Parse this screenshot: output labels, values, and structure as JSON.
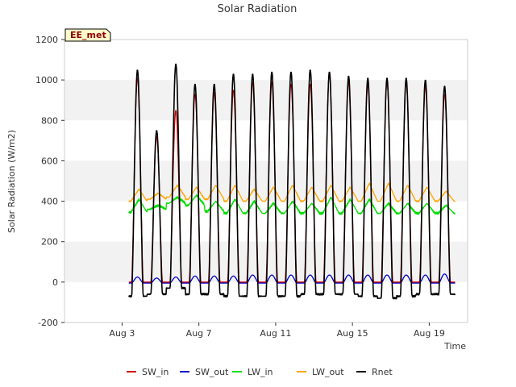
{
  "chart_data": {
    "type": "line",
    "title": "Solar Radiation",
    "xlabel": "Time",
    "ylabel": "Solar Radiation (W/m2)",
    "site_label": "EE_met",
    "xlim": [
      0,
      21
    ],
    "ylim": [
      -200,
      1200
    ],
    "yticks": [
      -200,
      0,
      200,
      400,
      600,
      800,
      1000,
      1200
    ],
    "xticks": [
      {
        "day": 3,
        "label": "Aug 3"
      },
      {
        "day": 7,
        "label": "Aug 7"
      },
      {
        "day": 11,
        "label": "Aug 11"
      },
      {
        "day": 15,
        "label": "Aug 15"
      },
      {
        "day": 19,
        "label": "Aug 19"
      }
    ],
    "grid": false,
    "shaded_bands": true,
    "legend": "bottom",
    "daily_peaks": {
      "days": [
        3.8,
        4.8,
        5.8,
        6.8,
        7.8,
        8.8,
        9.8,
        10.8,
        11.8,
        12.8,
        13.8,
        14.8,
        15.8,
        16.8,
        17.8,
        18.8,
        19.8
      ],
      "SW_in": [
        1010,
        720,
        850,
        930,
        940,
        950,
        990,
        990,
        980,
        980,
        1040,
        990,
        980,
        990,
        990,
        970,
        930
      ],
      "SW_out": [
        30,
        25,
        30,
        35,
        35,
        35,
        40,
        40,
        40,
        40,
        40,
        40,
        40,
        40,
        40,
        40,
        45
      ],
      "LW_in_peak": [
        410,
        380,
        420,
        430,
        400,
        410,
        400,
        390,
        400,
        390,
        420,
        410,
        410,
        390,
        390,
        390,
        380
      ],
      "LW_in_base": [
        345,
        360,
        390,
        380,
        350,
        340,
        340,
        340,
        340,
        340,
        340,
        340,
        340,
        340,
        340,
        340,
        340
      ],
      "LW_out_peak": [
        460,
        440,
        480,
        470,
        480,
        480,
        460,
        470,
        480,
        470,
        480,
        470,
        490,
        490,
        480,
        470,
        450
      ],
      "LW_out_base": [
        400,
        410,
        420,
        410,
        410,
        400,
        400,
        400,
        400,
        400,
        400,
        400,
        400,
        400,
        400,
        400,
        400
      ],
      "Rnet_peak": [
        1050,
        750,
        1080,
        980,
        980,
        1030,
        1030,
        1040,
        1040,
        1050,
        1040,
        1020,
        1010,
        1010,
        1010,
        1000,
        970
      ],
      "Rnet_night": [
        -70,
        -60,
        -30,
        -60,
        -60,
        -70,
        -70,
        -70,
        -70,
        -60,
        -60,
        -60,
        -70,
        -80,
        -70,
        -60,
        -60
      ]
    },
    "series": [
      {
        "name": "SW_in",
        "color": "#cc0000"
      },
      {
        "name": "SW_out",
        "color": "#0000cc"
      },
      {
        "name": "LW_in",
        "color": "#00dd00"
      },
      {
        "name": "LW_out",
        "color": "#ffa500"
      },
      {
        "name": "Rnet",
        "color": "#000000"
      }
    ]
  }
}
